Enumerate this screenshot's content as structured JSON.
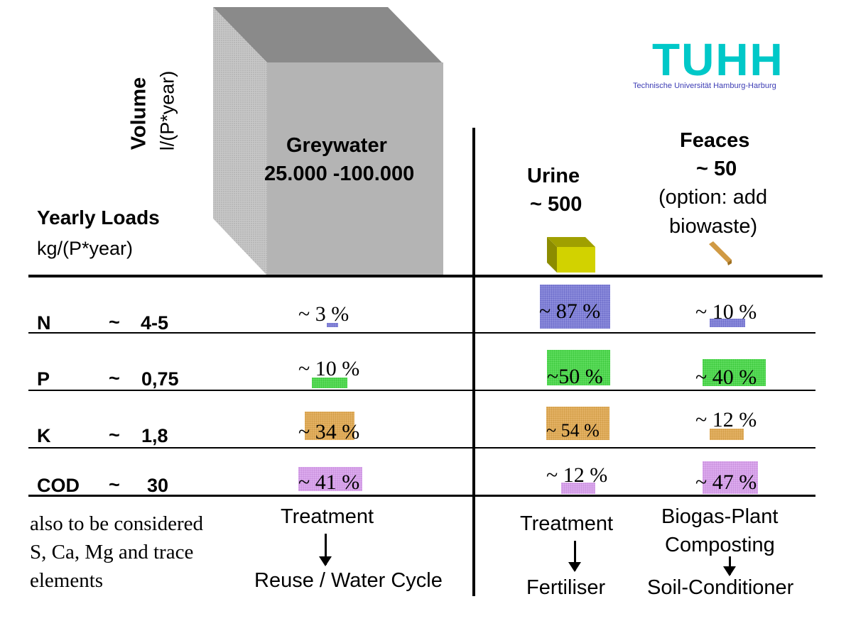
{
  "axis": {
    "volume_title": "Volume",
    "volume_unit": "l/(P*year)",
    "loads_title": "Yearly Loads",
    "loads_unit": "kg/(P*year)"
  },
  "logo": {
    "text": "TUHH",
    "subtitle": "Technische Universität Hamburg-Harburg",
    "color": "#00c8c8",
    "subtitle_color": "#3c3cb4"
  },
  "columns": {
    "greywater": {
      "name": "Greywater",
      "volume": "25.000 -100.000"
    },
    "urine": {
      "name": "Urine",
      "volume": "~ 500"
    },
    "feaces": {
      "name": "Feaces",
      "volume": "~ 50",
      "note_line1": "(option: add",
      "note_line2": "biowaste)"
    }
  },
  "rows": [
    {
      "name": "N",
      "tilde": "~",
      "value": "4-5",
      "greywater": "~ 3  %",
      "urine": "~ 87  %",
      "feaces": "~ 10 %",
      "color": "#8c8cdc"
    },
    {
      "name": "P",
      "tilde": "~",
      "value": "0,75",
      "greywater": "~ 10 %",
      "urine": "~50  %",
      "feaces": "~ 40 %",
      "color": "#5cdc5c"
    },
    {
      "name": "K",
      "tilde": "~",
      "value": "1,8",
      "greywater": "~ 34 %",
      "urine": "~ 54 %",
      "feaces": "~ 12 %",
      "color": "#e4b264"
    },
    {
      "name": "COD",
      "tilde": "~",
      "value": "30",
      "greywater": "~ 41 %",
      "urine": "~ 12 %",
      "feaces": "~ 47 %",
      "color": "#dcaaee"
    }
  ],
  "footnote": {
    "line1": "also to be considered",
    "line2": "S, Ca, Mg and trace",
    "line3": "elements"
  },
  "processes": {
    "greywater": {
      "step": "Treatment",
      "result": "Reuse / Water Cycle"
    },
    "urine": {
      "step": "Treatment",
      "result": "Fertiliser"
    },
    "feaces": {
      "step1": "Biogas-Plant",
      "step2": "Composting",
      "result": "Soil-Conditioner"
    }
  }
}
